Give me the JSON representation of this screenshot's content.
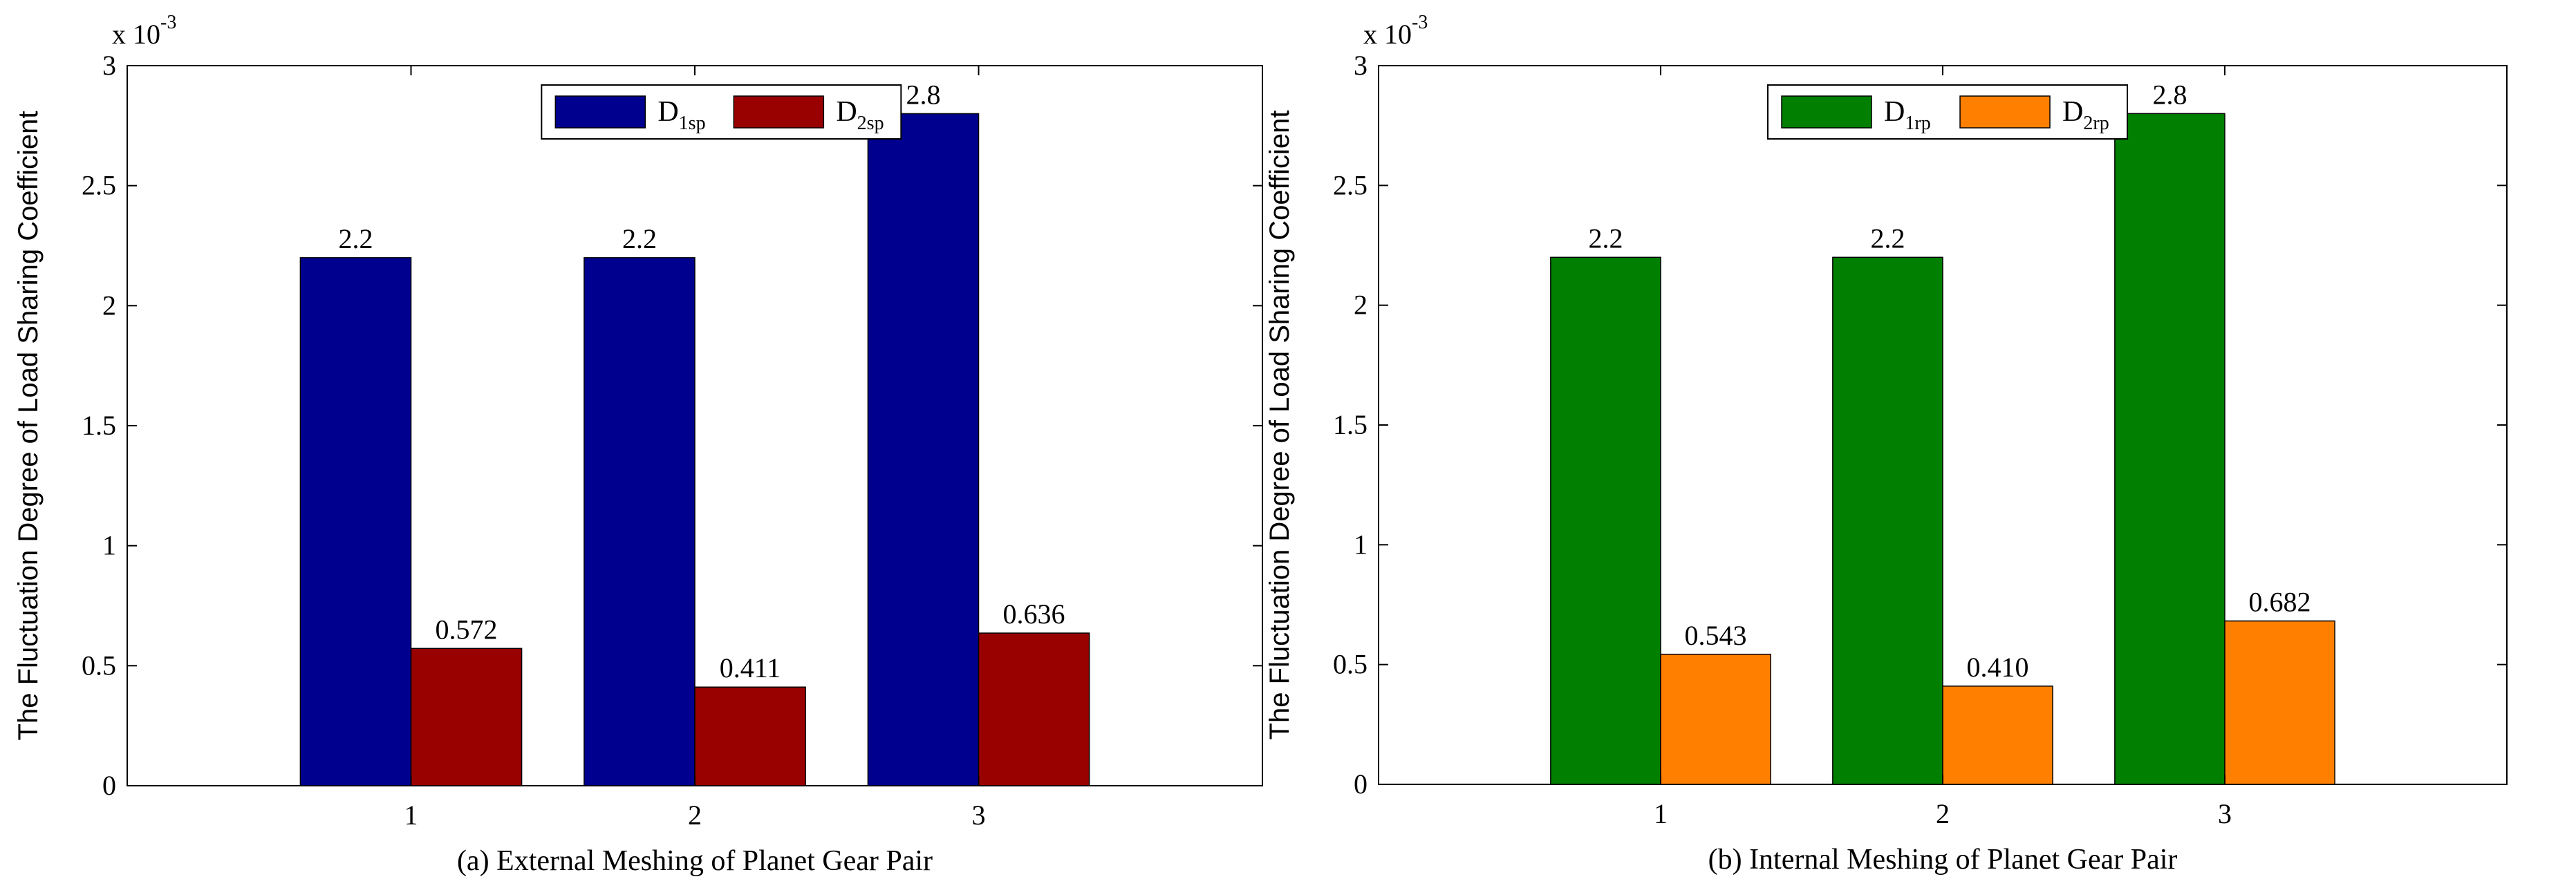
{
  "chart_data": [
    {
      "type": "bar",
      "categories": [
        "1",
        "2",
        "3"
      ],
      "series": [
        {
          "name": "D",
          "name_sub": "1sp",
          "color": "#00008f",
          "values": [
            2.2,
            2.2,
            2.8
          ]
        },
        {
          "name": "D",
          "name_sub": "2sp",
          "color": "#990000",
          "values": [
            0.572,
            0.411,
            0.636
          ]
        }
      ],
      "data_labels": [
        [
          "2.2",
          "2.2",
          "2.8"
        ],
        [
          "0.572",
          "0.411",
          "0.636"
        ]
      ],
      "ylabel": "The Fluctuation Degree of Load Sharing Coefficient",
      "caption": "(a)  External Meshing of Planet Gear Pair",
      "multiplier": "x 10",
      "multiplier_exp": "-3",
      "ylim": [
        0,
        3
      ],
      "yticks": [
        "0",
        "0.5",
        "1",
        "1.5",
        "2",
        "2.5",
        "3"
      ],
      "legend_position": "top-center",
      "grid": false
    },
    {
      "type": "bar",
      "categories": [
        "1",
        "2",
        "3"
      ],
      "series": [
        {
          "name": "D",
          "name_sub": "1rp",
          "color": "#007f00",
          "values": [
            2.2,
            2.2,
            2.8
          ]
        },
        {
          "name": "D",
          "name_sub": "2rp",
          "color": "#ff7f00",
          "values": [
            0.543,
            0.41,
            0.682
          ]
        }
      ],
      "data_labels": [
        [
          "2.2",
          "2.2",
          "2.8"
        ],
        [
          "0.543",
          "0.410",
          "0.682"
        ]
      ],
      "ylabel": "The Fluctuation Degree of Load Sharing Coefficient",
      "caption": "(b)   Internal Meshing of Planet Gear Pair",
      "multiplier": "x 10",
      "multiplier_exp": "-3",
      "ylim": [
        0,
        3
      ],
      "yticks": [
        "0",
        "0.5",
        "1",
        "1.5",
        "2",
        "2.5",
        "3"
      ],
      "legend_position": "top-center",
      "grid": false
    }
  ]
}
